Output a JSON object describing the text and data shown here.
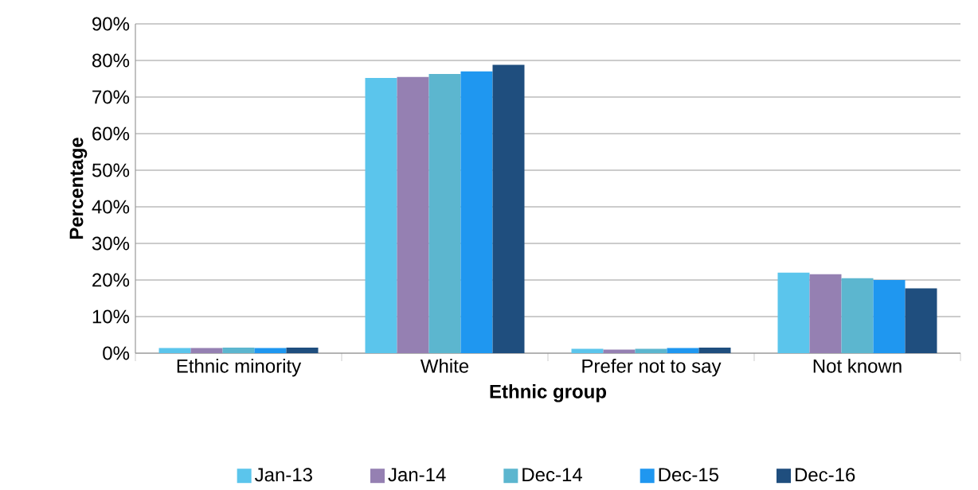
{
  "chart_data": {
    "type": "bar",
    "xlabel": "Ethnic group",
    "ylabel": "Percentage",
    "categories": [
      "Ethnic minority",
      "White",
      "Prefer not to say",
      "Not known"
    ],
    "series": [
      {
        "name": "Jan-13",
        "color": "#5bc5ec",
        "values": [
          1.4,
          75.2,
          1.2,
          22.0
        ]
      },
      {
        "name": "Jan-14",
        "color": "#9580b2",
        "values": [
          1.4,
          75.5,
          1.0,
          21.6
        ]
      },
      {
        "name": "Dec-14",
        "color": "#5cb6cf",
        "values": [
          1.5,
          76.3,
          1.2,
          20.5
        ]
      },
      {
        "name": "Dec-15",
        "color": "#1f97f0",
        "values": [
          1.4,
          77.0,
          1.4,
          20.0
        ]
      },
      {
        "name": "Dec-16",
        "color": "#1f4e7e",
        "values": [
          1.5,
          78.8,
          1.5,
          17.7
        ]
      }
    ],
    "ylim": [
      0,
      90
    ],
    "yticks": [
      {
        "value": 0,
        "label": "0%"
      },
      {
        "value": 10,
        "label": "10%"
      },
      {
        "value": 20,
        "label": "20%"
      },
      {
        "value": 30,
        "label": "30%"
      },
      {
        "value": 40,
        "label": "40%"
      },
      {
        "value": 50,
        "label": "50%"
      },
      {
        "value": 60,
        "label": "60%"
      },
      {
        "value": 70,
        "label": "70%"
      },
      {
        "value": 80,
        "label": "80%"
      },
      {
        "value": 90,
        "label": "90%"
      }
    ],
    "grid": "y",
    "legend": "bottom"
  }
}
